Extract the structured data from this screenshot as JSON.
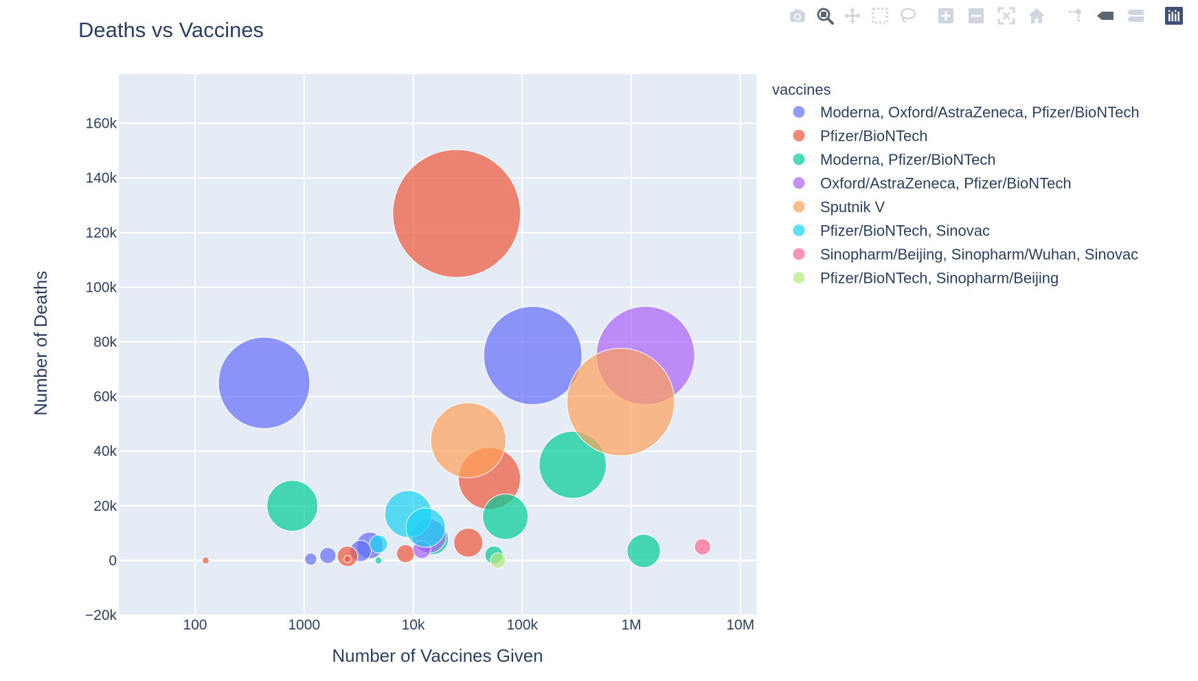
{
  "toolbar": {
    "buttons": [
      {
        "name": "camera-icon",
        "label": "Download plot as a png"
      },
      {
        "name": "zoom-icon",
        "label": "Zoom"
      },
      {
        "name": "pan-icon",
        "label": "Pan"
      },
      {
        "name": "box-select-icon",
        "label": "Box Select"
      },
      {
        "name": "lasso-select-icon",
        "label": "Lasso Select"
      },
      {
        "name": "zoom-in-icon",
        "label": "Zoom in"
      },
      {
        "name": "zoom-out-icon",
        "label": "Zoom out"
      },
      {
        "name": "autoscale-icon",
        "label": "Autoscale"
      },
      {
        "name": "reset-axes-icon",
        "label": "Reset axes"
      },
      {
        "name": "spike-lines-icon",
        "label": "Toggle Spike Lines"
      },
      {
        "name": "hover-closest-icon",
        "label": "Show closest data on hover"
      },
      {
        "name": "hover-compare-icon",
        "label": "Compare data on hover"
      },
      {
        "name": "plotly-logo-icon",
        "label": "Produced with Plotly"
      }
    ]
  },
  "chart_data": {
    "type": "scatter",
    "title": "Deaths vs Vaccines",
    "xlabel": "Number of Vaccines Given",
    "ylabel": "Number of Deaths",
    "x_scale": "log",
    "xlim": [
      20,
      14000000
    ],
    "ylim": [
      -20000,
      178000
    ],
    "x_ticks": [
      {
        "value": 100,
        "label": "100"
      },
      {
        "value": 1000,
        "label": "1000"
      },
      {
        "value": 10000,
        "label": "10k"
      },
      {
        "value": 100000,
        "label": "100k"
      },
      {
        "value": 1000000,
        "label": "1M"
      },
      {
        "value": 10000000,
        "label": "10M"
      }
    ],
    "y_ticks": [
      {
        "value": -20000,
        "label": "−20k"
      },
      {
        "value": 0,
        "label": "0"
      },
      {
        "value": 20000,
        "label": "20k"
      },
      {
        "value": 40000,
        "label": "40k"
      },
      {
        "value": 60000,
        "label": "60k"
      },
      {
        "value": 80000,
        "label": "80k"
      },
      {
        "value": 100000,
        "label": "100k"
      },
      {
        "value": 120000,
        "label": "120k"
      },
      {
        "value": 140000,
        "label": "140k"
      },
      {
        "value": 160000,
        "label": "160k"
      }
    ],
    "grid": true,
    "legend": {
      "title": "vaccines",
      "placement": "right"
    },
    "size_note": "marker area proportional to deaths",
    "series": [
      {
        "name": "Moderna, Oxford/AstraZeneca, Pfizer/BioNTech",
        "color": "#636efa",
        "points": [
          {
            "x": 430,
            "y": 65000,
            "size": 65000
          },
          {
            "x": 125000,
            "y": 75000,
            "size": 75000
          },
          {
            "x": 1150,
            "y": 500,
            "size": 1100
          },
          {
            "x": 1650,
            "y": 1800,
            "size": 2000
          },
          {
            "x": 4000,
            "y": 5500,
            "size": 5500
          },
          {
            "x": 3300,
            "y": 3500,
            "size": 3500
          }
        ]
      },
      {
        "name": "Pfizer/BioNTech",
        "color": "#ef553b",
        "points": [
          {
            "x": 25000,
            "y": 127000,
            "size": 127000
          },
          {
            "x": 50000,
            "y": 30000,
            "size": 30000
          },
          {
            "x": 32000,
            "y": 6500,
            "size": 6500
          },
          {
            "x": 8500,
            "y": 2500,
            "size": 2500
          },
          {
            "x": 2500,
            "y": 1500,
            "size": 3200
          },
          {
            "x": 2500,
            "y": 500,
            "size": 400
          },
          {
            "x": 125,
            "y": 0,
            "size": 150
          }
        ]
      },
      {
        "name": "Moderna, Pfizer/BioNTech",
        "color": "#00cc96",
        "points": [
          {
            "x": 780,
            "y": 20000,
            "size": 20000
          },
          {
            "x": 290000,
            "y": 35000,
            "size": 35000
          },
          {
            "x": 70000,
            "y": 16000,
            "size": 16000
          },
          {
            "x": 1300000,
            "y": 3500,
            "size": 8500
          },
          {
            "x": 55000,
            "y": 2000,
            "size": 2500
          },
          {
            "x": 15000,
            "y": 8000,
            "size": 8000
          },
          {
            "x": 4800,
            "y": 0,
            "size": 80
          }
        ]
      },
      {
        "name": "Oxford/AstraZeneca, Pfizer/BioNTech",
        "color": "#ab63fa",
        "points": [
          {
            "x": 1350000,
            "y": 75000,
            "size": 75000
          },
          {
            "x": 14000,
            "y": 9000,
            "size": 9000
          },
          {
            "x": 12000,
            "y": 4000,
            "size": 2500
          }
        ]
      },
      {
        "name": "Sputnik V",
        "color": "#ffa15a",
        "points": [
          {
            "x": 800000,
            "y": 58000,
            "size": 90000
          },
          {
            "x": 32000,
            "y": 44000,
            "size": 44000
          }
        ]
      },
      {
        "name": "Pfizer/BioNTech, Sinovac",
        "color": "#19d3f3",
        "points": [
          {
            "x": 9000,
            "y": 17000,
            "size": 17000
          },
          {
            "x": 13000,
            "y": 12000,
            "size": 12000
          },
          {
            "x": 4800,
            "y": 6000,
            "size": 2500
          }
        ]
      },
      {
        "name": "Sinopharm/Beijing, Sinopharm/Wuhan, Sinovac",
        "color": "#ff6692",
        "points": [
          {
            "x": 4500000,
            "y": 5000,
            "size": 2000
          }
        ]
      },
      {
        "name": "Pfizer/BioNTech, Sinopharm/Beijing",
        "color": "#b6e880",
        "points": [
          {
            "x": 60000,
            "y": 0,
            "size": 1800
          }
        ]
      }
    ]
  }
}
